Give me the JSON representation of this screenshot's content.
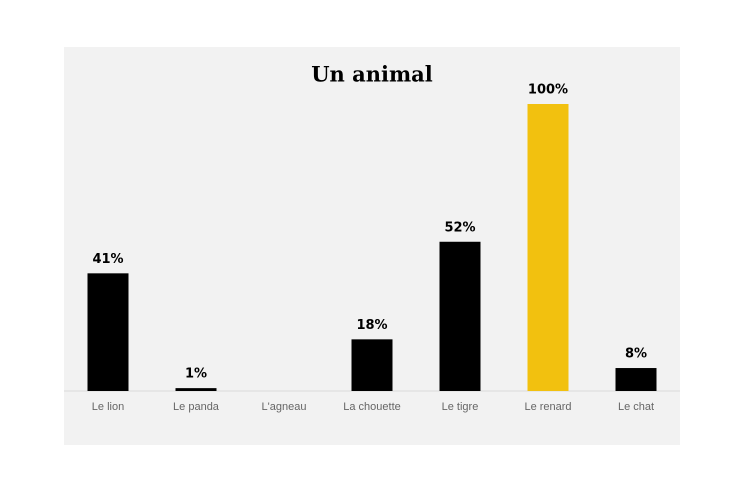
{
  "chart_data": {
    "type": "bar",
    "title": "Un animal",
    "categories": [
      "Le lion",
      "Le panda",
      "L'agneau",
      "La chouette",
      "Le tigre",
      "Le renard",
      "Le chat"
    ],
    "values": [
      41,
      1,
      null,
      18,
      52,
      100,
      8
    ],
    "value_labels": [
      "41%",
      "1%",
      null,
      "18%",
      "52%",
      "100%",
      "8%"
    ],
    "colors": [
      "#000000",
      "#000000",
      "#000000",
      "#000000",
      "#000000",
      "#f2c10f",
      "#000000"
    ]
  }
}
